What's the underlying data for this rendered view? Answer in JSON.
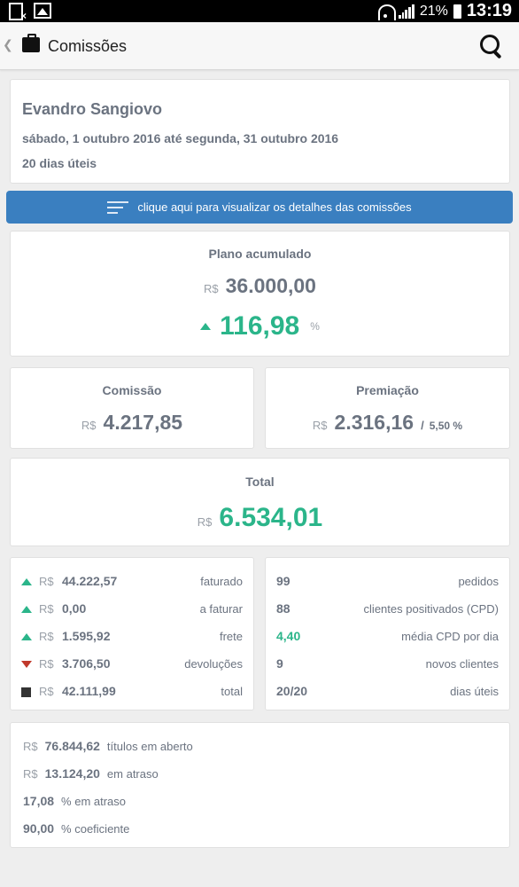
{
  "status_bar": {
    "battery": "21%",
    "time": "13:19"
  },
  "app_bar": {
    "title": "Comissões"
  },
  "header": {
    "name": "Evandro Sangiovo",
    "date_range": "sábado, 1 outubro 2016 até segunda, 31 outubro 2016",
    "working_days": "20 dias úteis"
  },
  "details_button": {
    "label": "clique aqui para visualizar os detalhes das comissões"
  },
  "plano": {
    "label": "Plano acumulado",
    "currency": "R$",
    "value": "36.000,00",
    "percent": "116,98",
    "percent_sign": "%"
  },
  "comissao": {
    "label": "Comissão",
    "currency": "R$",
    "value": "4.217,85"
  },
  "premiacao": {
    "label": "Premiação",
    "currency": "R$",
    "value": "2.316,16",
    "slash": "/",
    "percent": "5,50 %"
  },
  "total": {
    "label": "Total",
    "currency": "R$",
    "value": "6.534,01"
  },
  "sales": [
    {
      "indicator": "up",
      "currency": "R$",
      "value": "44.222,57",
      "label": "faturado"
    },
    {
      "indicator": "up",
      "currency": "R$",
      "value": "0,00",
      "label": "a faturar"
    },
    {
      "indicator": "up",
      "currency": "R$",
      "value": "1.595,92",
      "label": "frete"
    },
    {
      "indicator": "down",
      "currency": "R$",
      "value": "3.706,50",
      "label": "devoluções"
    },
    {
      "indicator": "square",
      "currency": "R$",
      "value": "42.111,99",
      "label": "total"
    }
  ],
  "stats": [
    {
      "value": "99",
      "label": "pedidos"
    },
    {
      "value": "88",
      "label": "clientes positivados (CPD)"
    },
    {
      "value": "4,40",
      "label": "média CPD por dia"
    },
    {
      "value": "9",
      "label": "novos clientes"
    },
    {
      "value": "20/20",
      "label": "dias úteis"
    }
  ],
  "titles": {
    "open": {
      "currency": "R$",
      "value": "76.844,62",
      "label": "títulos em aberto"
    },
    "late": {
      "currency": "R$",
      "value": "13.124,20",
      "label": "em atraso"
    },
    "late_pct": {
      "value": "17,08",
      "label": "% em atraso"
    },
    "coef": {
      "value": "90,00",
      "label": "% coeficiente"
    }
  },
  "colors": {
    "accent_green": "#2bb58a",
    "button_blue": "#3a7fc0",
    "down_red": "#c0392b"
  }
}
